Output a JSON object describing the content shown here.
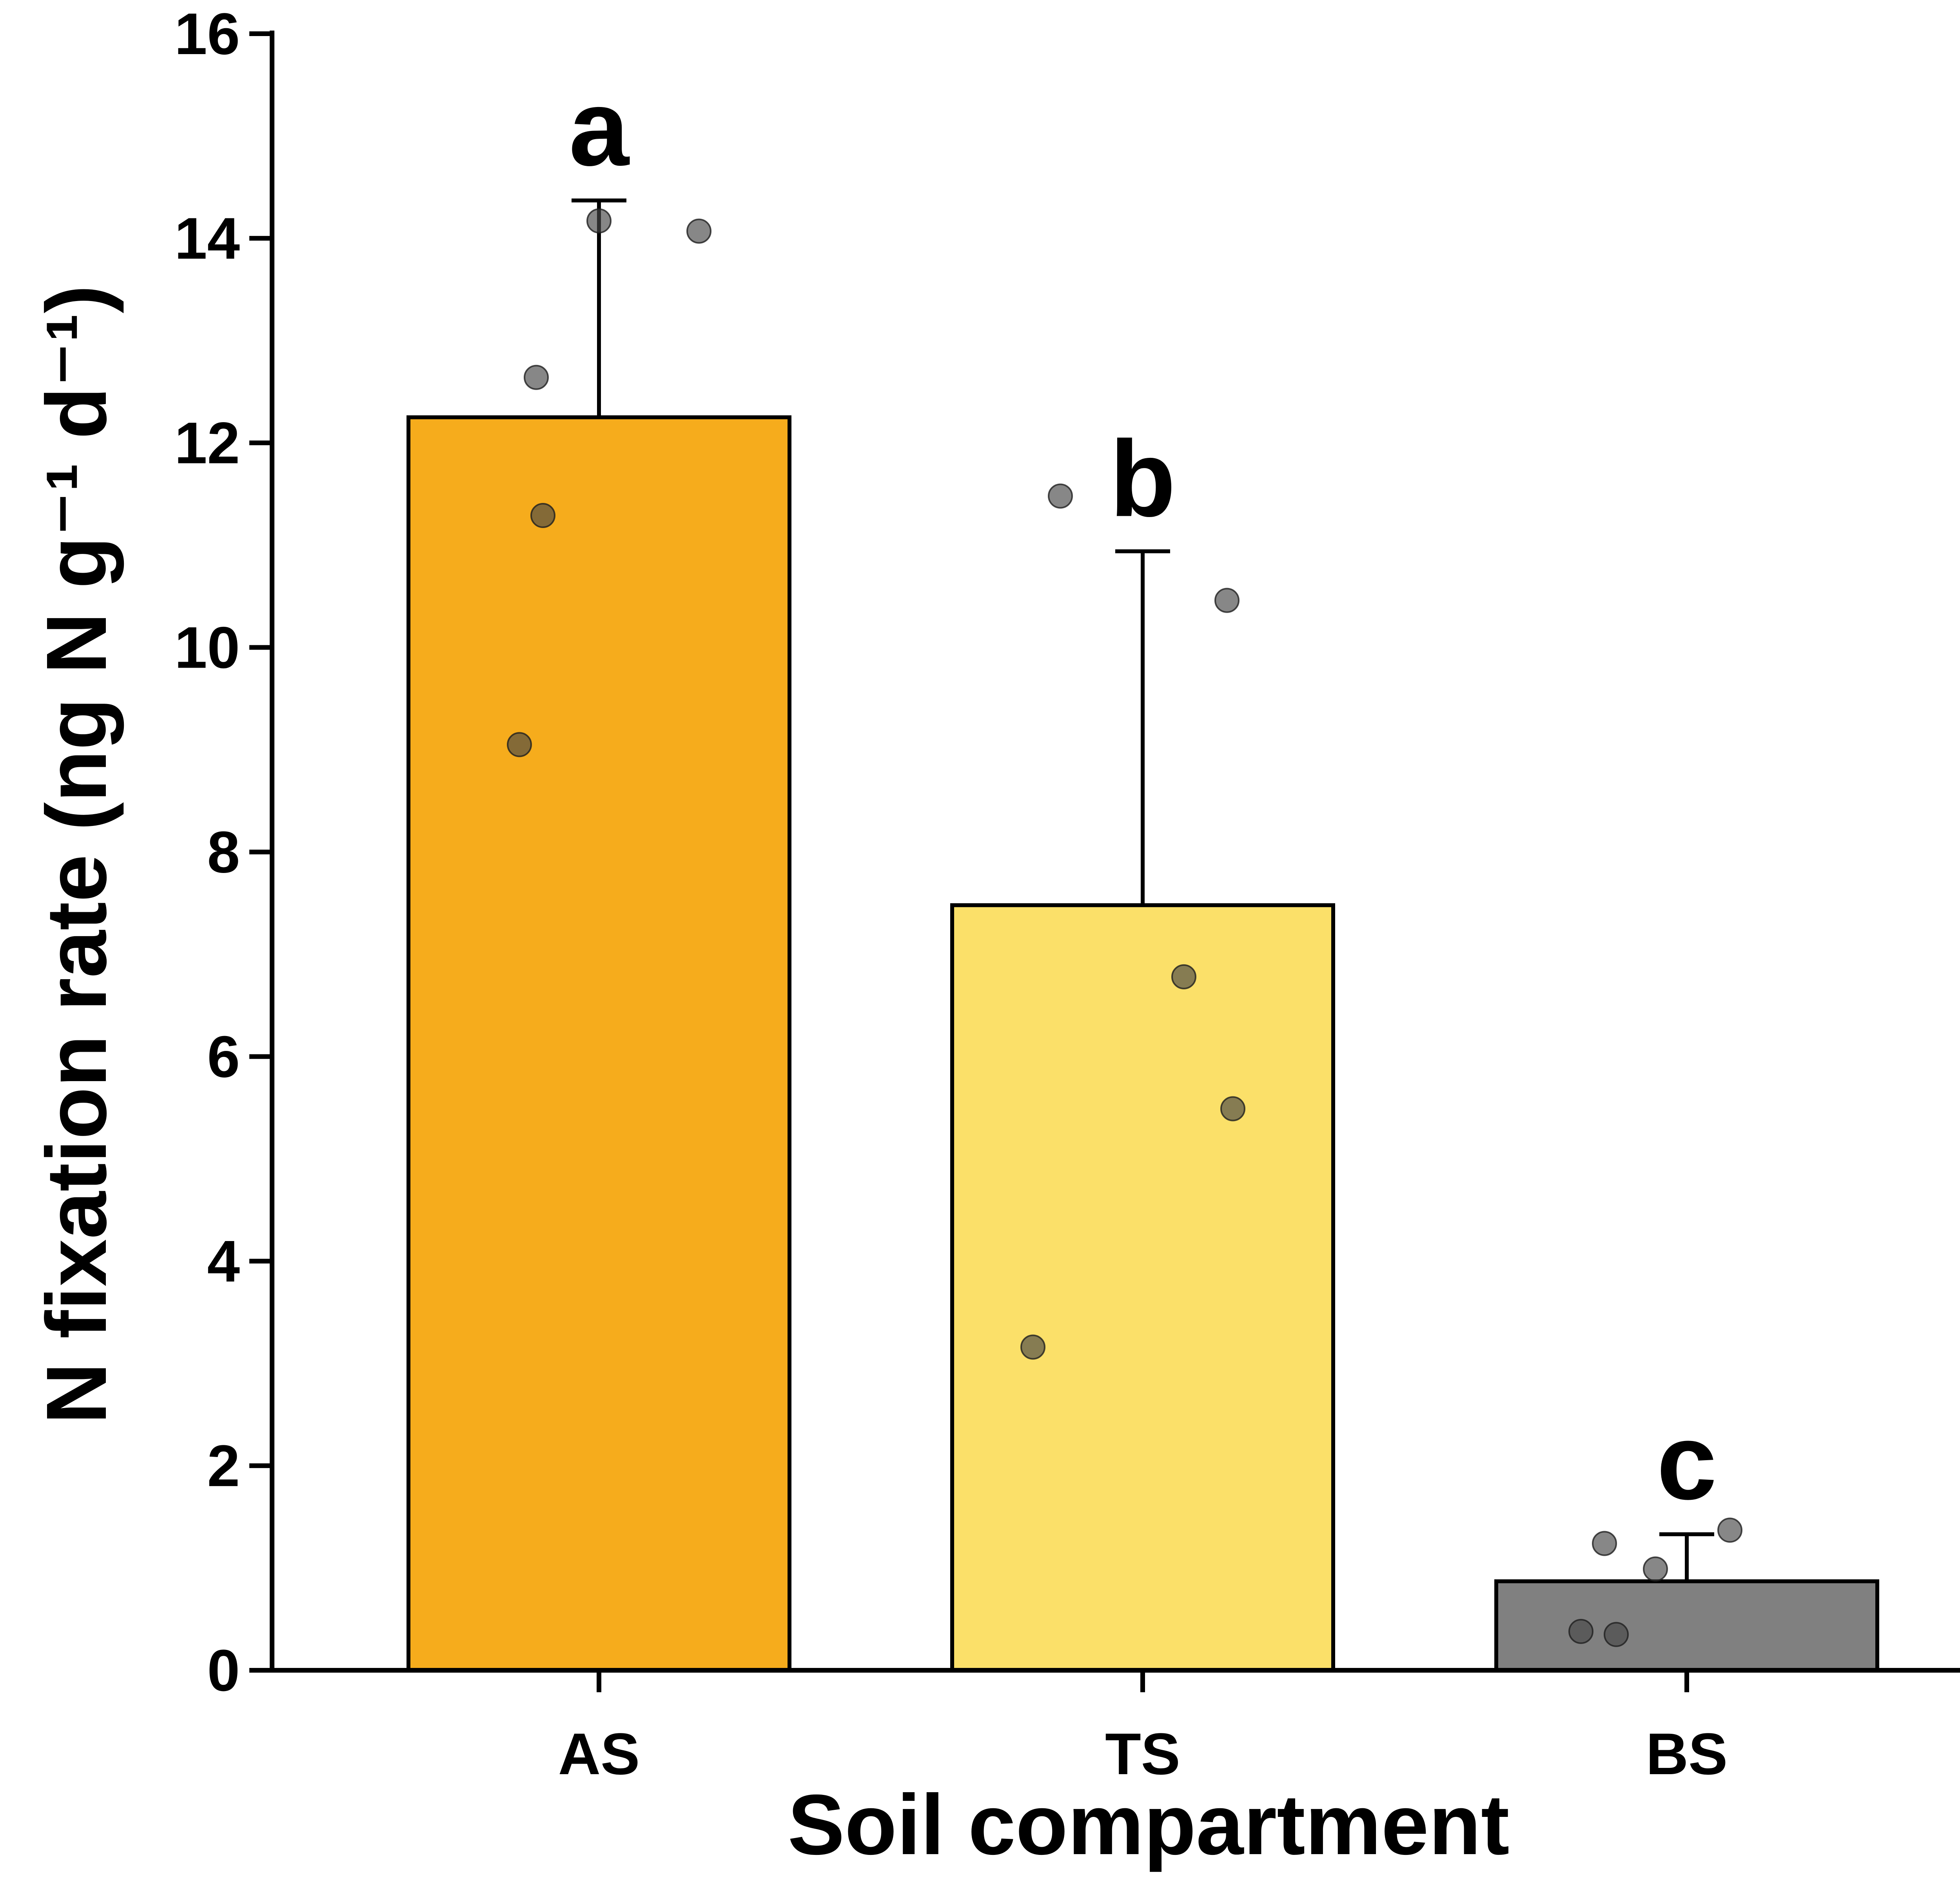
{
  "chart_data": {
    "type": "bar",
    "xlabel": "Soil compartment",
    "ylabel": "N fixation rate (ng N g⁻¹ d⁻¹)",
    "ylim": [
      0,
      16
    ],
    "yticks": [
      "0",
      "2",
      "4",
      "6",
      "8",
      "10",
      "12",
      "14",
      "16"
    ],
    "categories": [
      "AS",
      "TS",
      "BS"
    ],
    "values": [
      12.25,
      7.48,
      0.87
    ],
    "error_upper": [
      14.37,
      10.94,
      1.33
    ],
    "significance_letters": [
      "a",
      "b",
      "c"
    ],
    "bar_colors": [
      "#F6AC1C",
      "#FBE069",
      "#808080"
    ],
    "points": [
      [
        14.17,
        14.07,
        12.64,
        11.29,
        9.05
      ],
      [
        11.48,
        10.46,
        6.78,
        5.49,
        3.16
      ],
      [
        1.37,
        1.24,
        0.99,
        0.38,
        0.35
      ]
    ],
    "grid": false,
    "legend": "none"
  }
}
